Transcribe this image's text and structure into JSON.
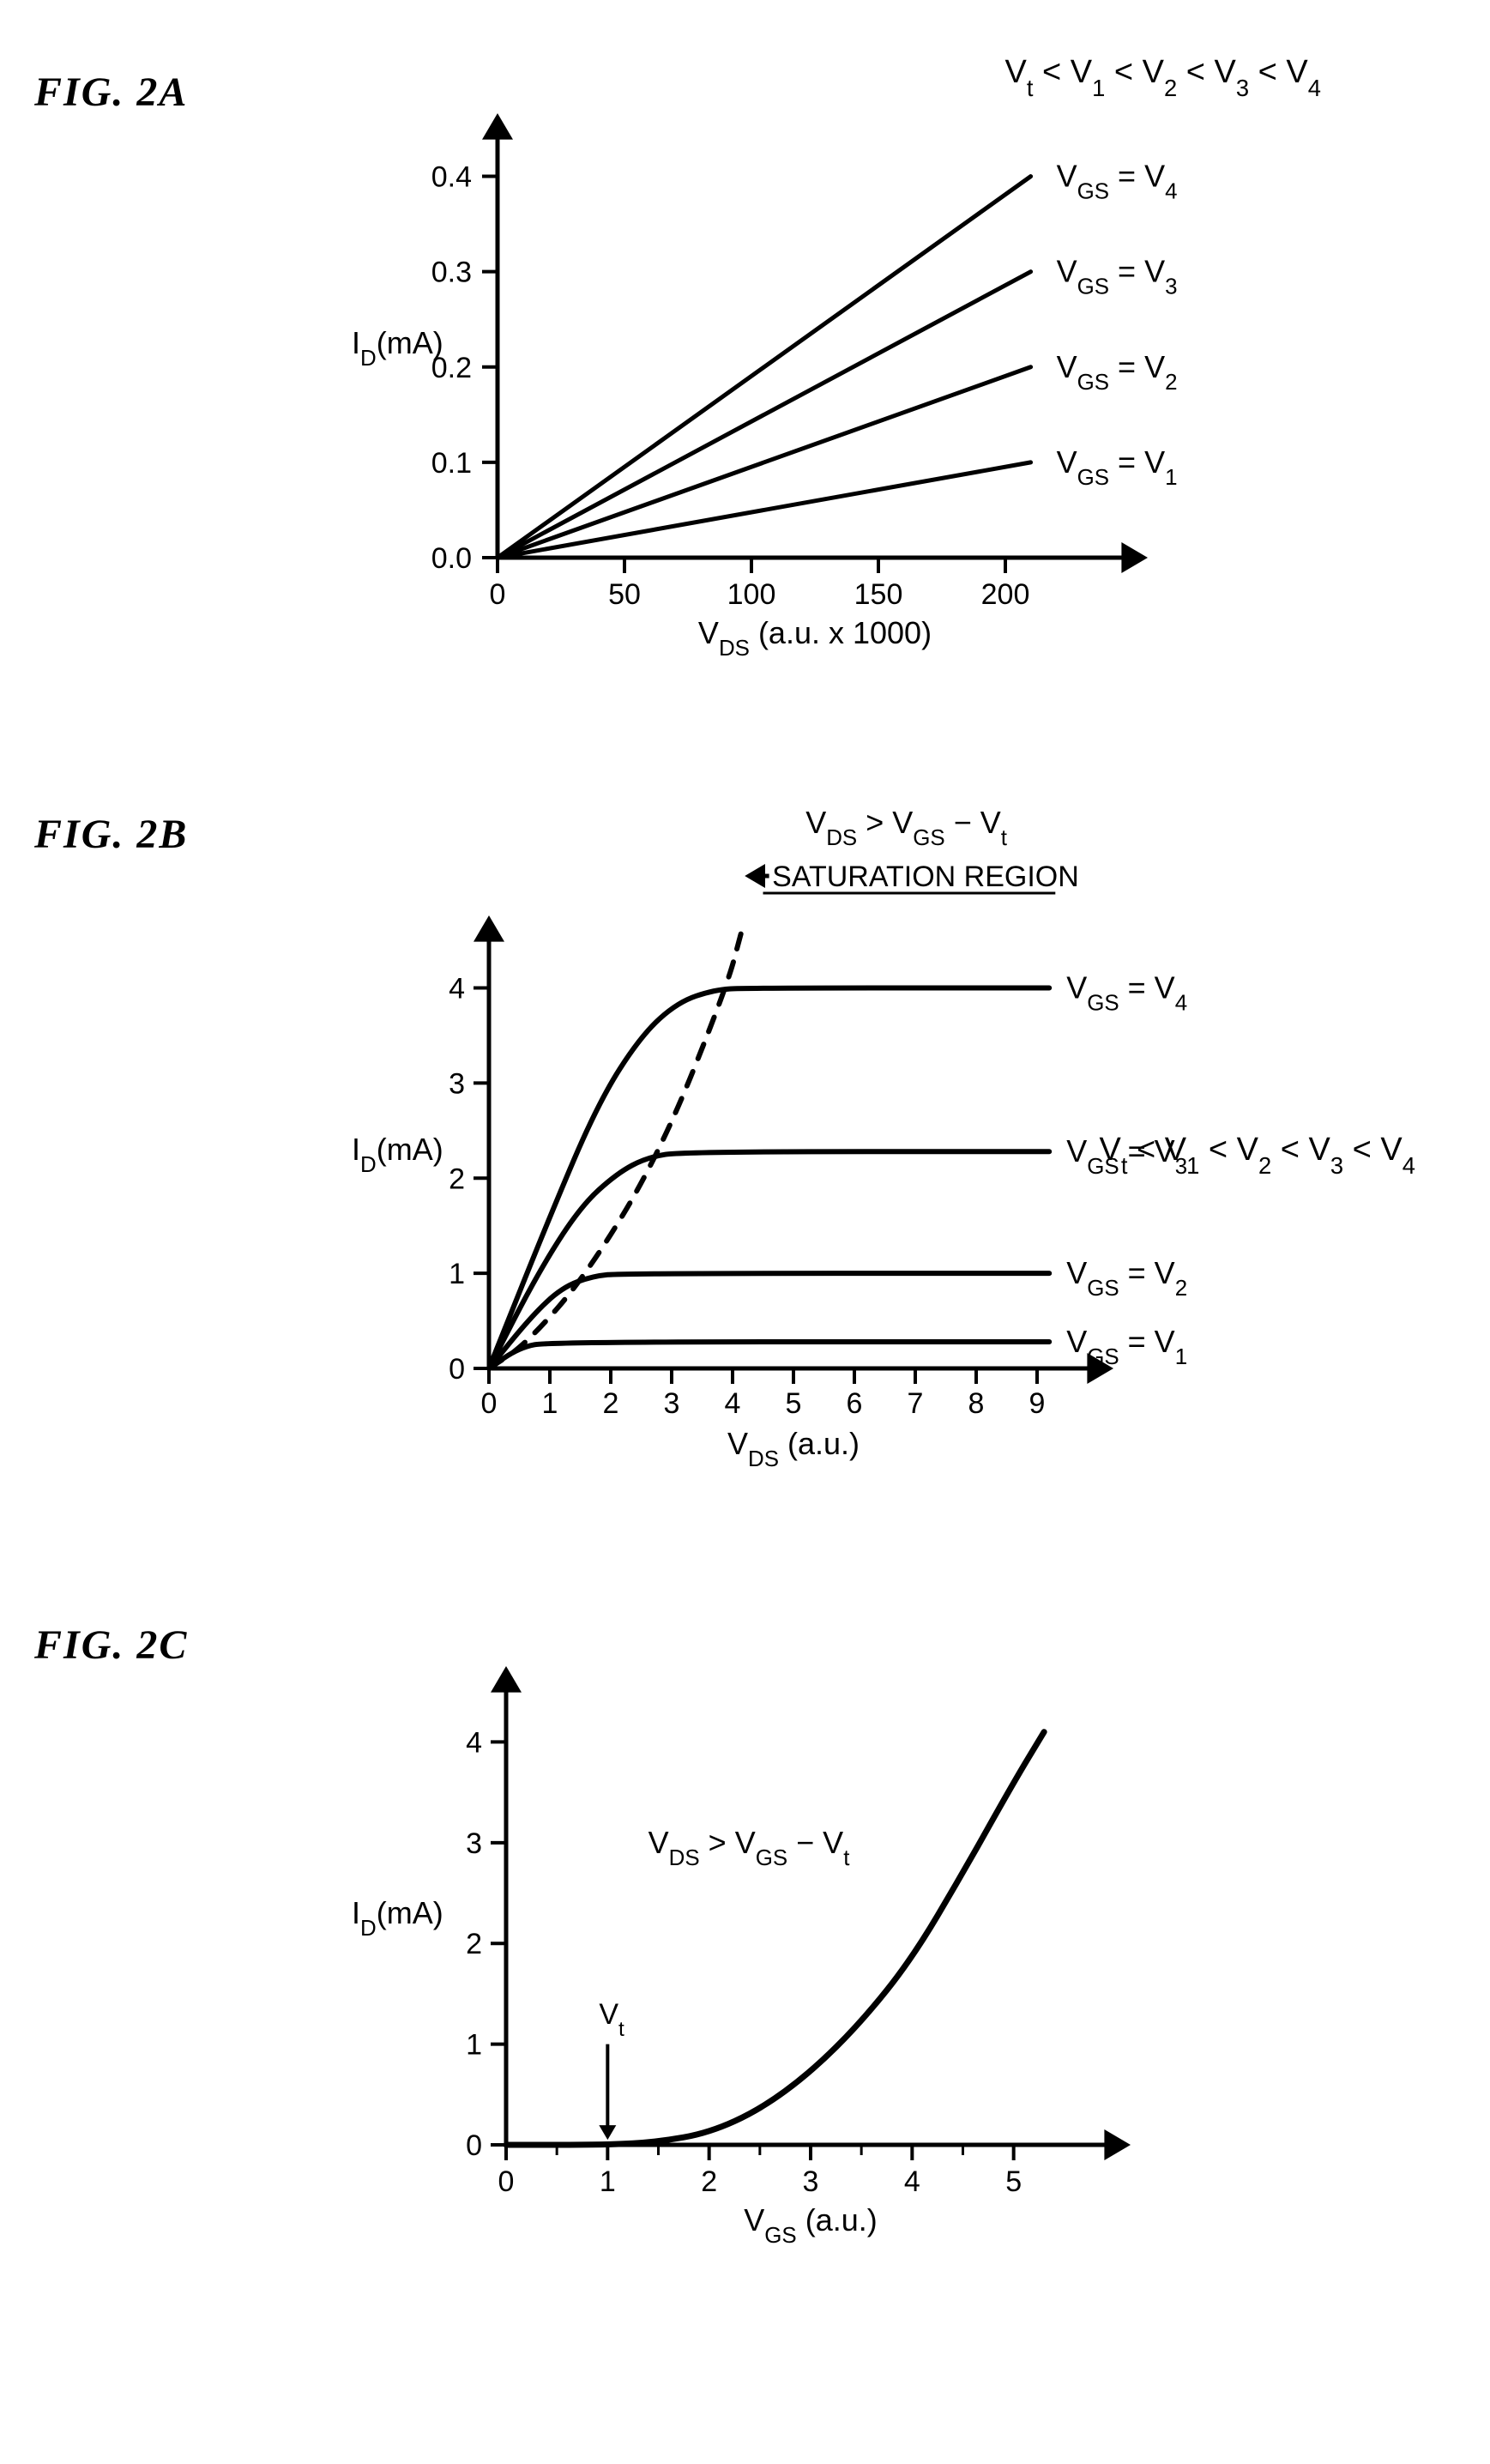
{
  "figA": {
    "label": "FIG.  2A",
    "inequality": "V_t < V_1 < V_2 < V_3 < V_4",
    "type": "line",
    "ylabel": "I_D(mA)",
    "xlabel": "V_DS (a.u. x 1000)",
    "xlim": [
      0,
      250
    ],
    "ylim": [
      0,
      0.45
    ],
    "xticks": [
      0,
      50,
      100,
      150,
      200
    ],
    "yticks": [
      0.0,
      0.1,
      0.2,
      0.3,
      0.4
    ],
    "ytick_labels": [
      "0.0",
      "0.1",
      "0.2",
      "0.3",
      "0.4"
    ],
    "line_width": 5,
    "axis_width": 5,
    "color": "#000000",
    "background_color": "#ffffff",
    "series": [
      {
        "x": [
          0,
          210
        ],
        "y": [
          0,
          0.1
        ],
        "label": "V_GS = V_1"
      },
      {
        "x": [
          0,
          210
        ],
        "y": [
          0,
          0.2
        ],
        "label": "V_GS = V_2"
      },
      {
        "x": [
          0,
          210
        ],
        "y": [
          0,
          0.3
        ],
        "label": "V_GS = V_3"
      },
      {
        "x": [
          0,
          210
        ],
        "y": [
          0,
          0.4
        ],
        "label": "V_GS = V_4"
      }
    ]
  },
  "figB": {
    "label": "FIG.  2B",
    "inequality": "V_t < V_1 < V_2 < V_3 < V_4",
    "annotation_top": "V_DS > V_GS − V_t",
    "annotation_region": "SATURATION  REGION",
    "type": "line",
    "ylabel": "I_D(mA)",
    "xlabel": "V_DS (a.u.)",
    "xlim": [
      0,
      10
    ],
    "ylim": [
      0,
      4.6
    ],
    "xticks": [
      0,
      1,
      2,
      3,
      4,
      5,
      6,
      7,
      8,
      9
    ],
    "yticks": [
      0,
      1,
      2,
      3,
      4
    ],
    "line_width": 6,
    "axis_width": 5,
    "color": "#000000",
    "background_color": "#ffffff",
    "series": [
      {
        "pts": [
          [
            0,
            0
          ],
          [
            0.5,
            0.22
          ],
          [
            1.0,
            0.28
          ],
          [
            9.2,
            0.28
          ]
        ],
        "label": "V_GS = V_1"
      },
      {
        "pts": [
          [
            0,
            0
          ],
          [
            0.7,
            0.55
          ],
          [
            1.2,
            0.85
          ],
          [
            1.7,
            0.97
          ],
          [
            2.2,
            1.0
          ],
          [
            9.2,
            1.0
          ]
        ],
        "label": "V_GS = V_2"
      },
      {
        "pts": [
          [
            0,
            0
          ],
          [
            0.8,
            1.0
          ],
          [
            1.5,
            1.7
          ],
          [
            2.1,
            2.05
          ],
          [
            2.6,
            2.22
          ],
          [
            3.2,
            2.28
          ],
          [
            9.2,
            2.28
          ]
        ],
        "label": "V_GS = V_3"
      },
      {
        "pts": [
          [
            0,
            0
          ],
          [
            1.0,
            1.6
          ],
          [
            1.8,
            2.8
          ],
          [
            2.5,
            3.5
          ],
          [
            3.1,
            3.85
          ],
          [
            3.7,
            3.98
          ],
          [
            4.2,
            4.0
          ],
          [
            9.2,
            4.0
          ]
        ],
        "label": "V_GS = V_4"
      }
    ],
    "boundary_dash": {
      "pts": [
        [
          0,
          0
        ],
        [
          0.6,
          0.25
        ],
        [
          1.6,
          0.98
        ],
        [
          2.8,
          2.25
        ],
        [
          3.9,
          4.0
        ],
        [
          4.15,
          4.6
        ]
      ]
    }
  },
  "figC": {
    "label": "FIG.  2C",
    "type": "line",
    "ylabel": "I_D(mA)",
    "xlabel": "V_GS (a.u.)",
    "annotation": "V_DS > V_GS − V_t",
    "vt_label": "V_t",
    "vt_x": 1,
    "xlim": [
      0,
      6
    ],
    "ylim": [
      0,
      4.6
    ],
    "xticks": [
      0,
      1,
      2,
      3,
      4,
      5
    ],
    "yticks": [
      0,
      1,
      2,
      3,
      4
    ],
    "line_width": 7,
    "axis_width": 5,
    "color": "#000000",
    "background_color": "#ffffff",
    "curve": {
      "pts": [
        [
          0,
          0
        ],
        [
          1.0,
          0
        ],
        [
          1.5,
          0.03
        ],
        [
          2.0,
          0.12
        ],
        [
          2.5,
          0.35
        ],
        [
          3.0,
          0.72
        ],
        [
          3.5,
          1.22
        ],
        [
          4.0,
          1.85
        ],
        [
          4.5,
          2.7
        ],
        [
          5.0,
          3.6
        ],
        [
          5.3,
          4.1
        ]
      ]
    }
  }
}
